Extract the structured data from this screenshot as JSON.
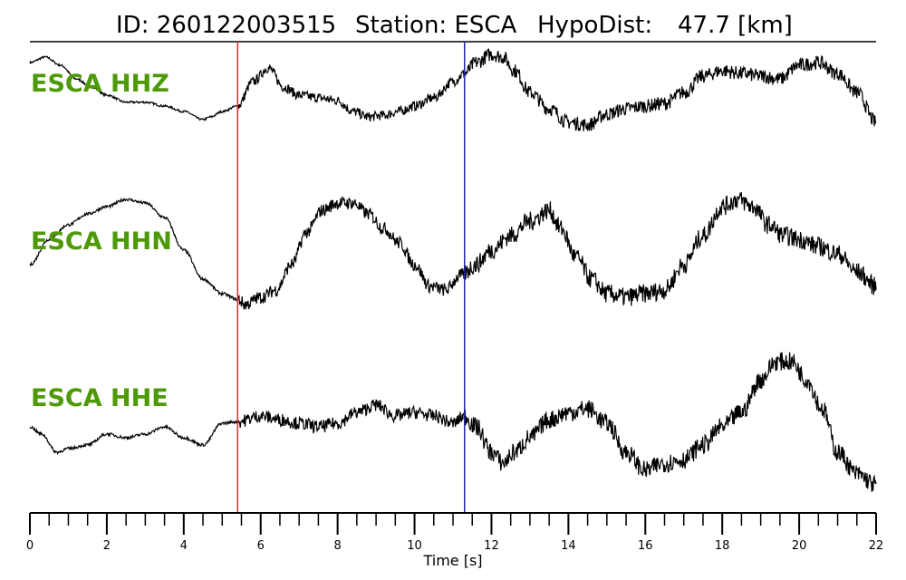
{
  "title": {
    "id_text": "ID: 260122003515",
    "station_text": "Station: ESCA",
    "hypodist_text": "HypoDist:",
    "hypodist_value": "47.7 [km]"
  },
  "colors": {
    "label": "#4d9a06",
    "trace": "#000000",
    "p_pick": "#e0302a",
    "s_pick": "#2323b0"
  },
  "chart_data": {
    "type": "line",
    "xlabel": "Time [s]",
    "xlim": [
      0,
      22
    ],
    "x_ticks": [
      0,
      2,
      4,
      6,
      8,
      10,
      12,
      14,
      16,
      18,
      20,
      22
    ],
    "x_tick_labels": [
      "0",
      "2",
      "4",
      "6",
      "8",
      "10",
      "12",
      "14",
      "16",
      "18",
      "20",
      "22"
    ],
    "minor_tick_step": 0.5,
    "grid": false,
    "legend": "none",
    "picks": [
      {
        "phase": "P",
        "time": 5.4,
        "color": "#e0302a"
      },
      {
        "phase": "S",
        "time": 11.3,
        "color": "#2323b0"
      }
    ],
    "series": [
      {
        "name": "ESCA HHZ",
        "x": [
          0,
          0.4,
          0.8,
          1.2,
          1.6,
          2.0,
          2.5,
          3.0,
          3.5,
          4.0,
          4.5,
          4.7,
          5.0,
          5.4,
          5.8,
          6.2,
          6.6,
          7.0,
          7.5,
          8.0,
          8.4,
          8.8,
          9.2,
          9.6,
          10.0,
          10.5,
          11.0,
          11.3,
          11.6,
          12.0,
          12.3,
          12.6,
          13.0,
          13.5,
          14.0,
          14.5,
          15.0,
          15.5,
          16.0,
          16.5,
          17.0,
          17.5,
          18.0,
          18.5,
          19.0,
          19.5,
          20.0,
          20.5,
          21.0,
          21.5,
          22.0
        ],
        "y": [
          0.85,
          0.95,
          0.8,
          0.55,
          0.4,
          0.25,
          0.12,
          0.12,
          0.05,
          -0.05,
          -0.2,
          -0.15,
          -0.05,
          0.05,
          0.5,
          0.75,
          0.4,
          0.25,
          0.2,
          0.15,
          -0.05,
          -0.15,
          -0.12,
          -0.05,
          0.05,
          0.2,
          0.5,
          0.65,
          0.85,
          1.0,
          0.95,
          0.7,
          0.3,
          0.0,
          -0.25,
          -0.3,
          -0.1,
          0.0,
          0.05,
          0.1,
          0.3,
          0.6,
          0.7,
          0.65,
          0.6,
          0.55,
          0.8,
          0.85,
          0.65,
          0.3,
          -0.25
        ],
        "color": "#000000"
      },
      {
        "name": "ESCA HHN",
        "x": [
          0,
          0.5,
          1.0,
          1.5,
          2.0,
          2.5,
          3.0,
          3.5,
          4.0,
          4.5,
          5.0,
          5.4,
          5.6,
          6.0,
          6.4,
          6.8,
          7.2,
          7.6,
          8.0,
          8.4,
          8.8,
          9.2,
          9.6,
          10.0,
          10.4,
          10.8,
          11.2,
          11.6,
          12.0,
          12.5,
          13.0,
          13.5,
          13.8,
          14.2,
          14.6,
          15.0,
          15.5,
          16.0,
          16.5,
          17.0,
          17.5,
          18.0,
          18.4,
          18.8,
          19.2,
          19.6,
          20.0,
          20.5,
          21.0,
          21.5,
          22.0
        ],
        "y": [
          0.1,
          0.45,
          0.65,
          0.8,
          0.9,
          1.0,
          0.95,
          0.75,
          0.3,
          -0.1,
          -0.3,
          -0.38,
          -0.45,
          -0.35,
          -0.25,
          0.1,
          0.55,
          0.85,
          0.95,
          0.95,
          0.8,
          0.6,
          0.4,
          0.1,
          -0.2,
          -0.25,
          -0.05,
          0.1,
          0.3,
          0.5,
          0.7,
          0.85,
          0.6,
          0.2,
          -0.1,
          -0.3,
          -0.35,
          -0.3,
          -0.25,
          0.1,
          0.5,
          0.9,
          1.0,
          0.9,
          0.65,
          0.5,
          0.45,
          0.35,
          0.25,
          0.0,
          -0.2
        ],
        "color": "#000000"
      },
      {
        "name": "ESCA HHE",
        "x": [
          0,
          0.3,
          0.7,
          1.0,
          1.5,
          2.0,
          2.5,
          3.0,
          3.5,
          4.0,
          4.5,
          5.0,
          5.4,
          6.0,
          6.5,
          7.0,
          7.5,
          8.0,
          8.5,
          9.0,
          9.5,
          10.0,
          10.5,
          11.0,
          11.3,
          11.6,
          12.0,
          12.3,
          12.6,
          13.0,
          13.5,
          14.0,
          14.5,
          15.0,
          15.5,
          16.0,
          16.5,
          17.0,
          17.5,
          18.0,
          18.5,
          19.0,
          19.4,
          19.8,
          20.2,
          20.6,
          21.0,
          21.5,
          22.0
        ],
        "y": [
          0.05,
          -0.05,
          -0.3,
          -0.25,
          -0.2,
          -0.05,
          -0.1,
          -0.05,
          0.05,
          -0.1,
          -0.2,
          0.1,
          0.12,
          0.2,
          0.15,
          0.1,
          0.05,
          0.1,
          0.25,
          0.35,
          0.2,
          0.25,
          0.2,
          0.1,
          0.2,
          0.05,
          -0.3,
          -0.45,
          -0.3,
          -0.1,
          0.15,
          0.25,
          0.3,
          0.1,
          -0.3,
          -0.55,
          -0.45,
          -0.4,
          -0.2,
          0.05,
          0.25,
          0.7,
          0.95,
          0.95,
          0.7,
          0.3,
          -0.3,
          -0.6,
          -0.75
        ],
        "color": "#000000"
      }
    ]
  }
}
